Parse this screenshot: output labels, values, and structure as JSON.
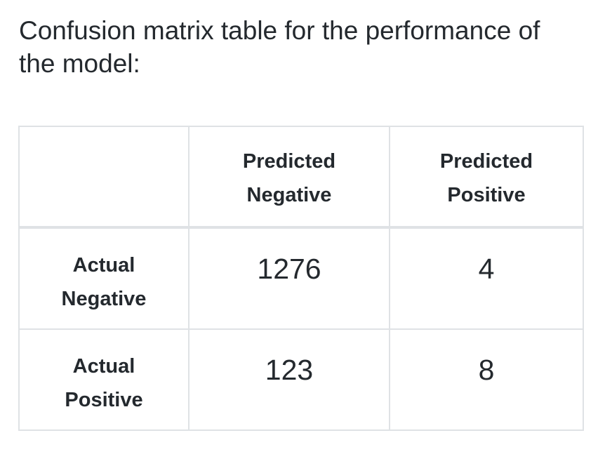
{
  "intro_text": "Confusion matrix table for the performance of the model:",
  "table": {
    "corner": "",
    "columns": [
      {
        "line1": "Predicted",
        "line2": "Negative"
      },
      {
        "line1": "Predicted",
        "line2": "Positive"
      }
    ],
    "rows": [
      {
        "line1": "Actual",
        "line2": "Negative",
        "values": [
          "1276",
          "4"
        ]
      },
      {
        "line1": "Actual",
        "line2": "Positive",
        "values": [
          "123",
          "8"
        ]
      }
    ]
  },
  "colors": {
    "text": "#24292e",
    "border": "#dfe2e5",
    "background": "#ffffff"
  }
}
